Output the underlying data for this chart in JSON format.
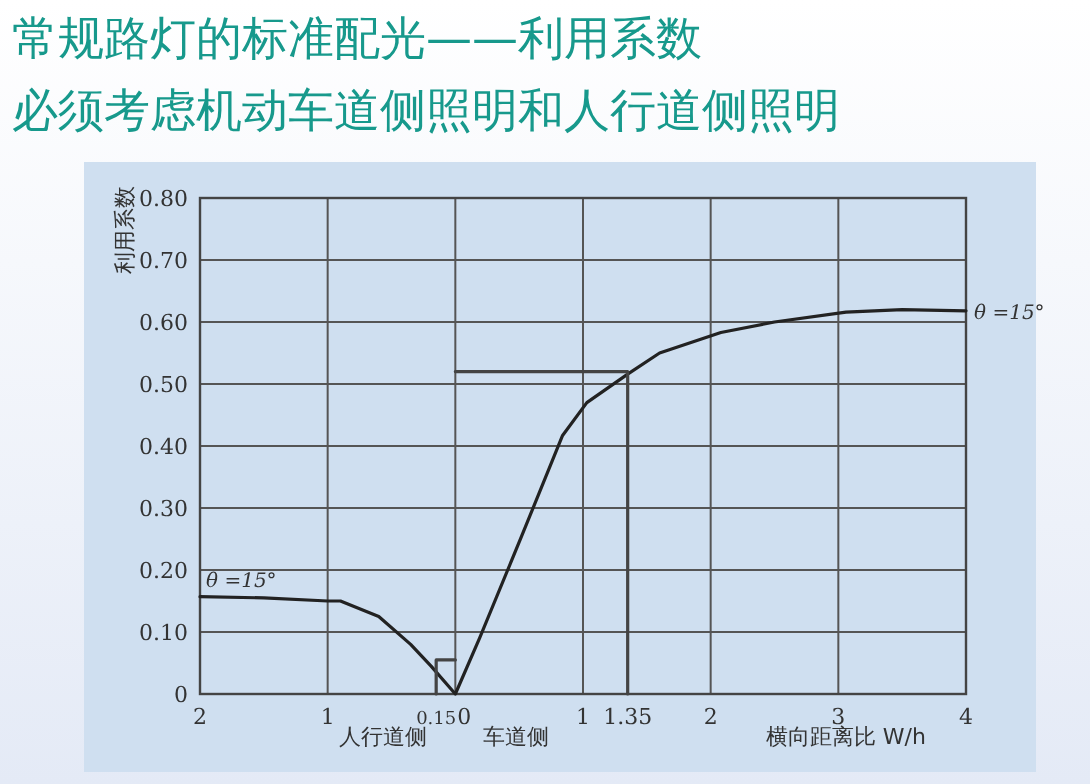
{
  "chart_data": {
    "type": "line",
    "title": "常规路灯的标准配光——利用系数",
    "subtitle": "必须考虑机动车道侧照明和人行道侧照明",
    "xlabel": "横向距离比 W/h",
    "ylabel": "利用系数",
    "annotations": [
      "人行道侧",
      "车道侧",
      {
        "text": "θ =15°",
        "x": -2,
        "y": 0.157
      },
      {
        "text": "θ =15°",
        "x": 4,
        "y": 0.617
      }
    ],
    "xlim": [
      -2,
      4
    ],
    "ylim": [
      0,
      0.8
    ],
    "xticks": [
      {
        "value": -2,
        "label": "2"
      },
      {
        "value": -1,
        "label": "1"
      },
      {
        "value": -0.15,
        "label": "0.15"
      },
      0,
      1,
      1.35,
      2,
      3,
      4
    ],
    "yticks": [
      0,
      {
        "value": 0.1,
        "label": "0.10"
      },
      {
        "value": 0.2,
        "label": "0.20"
      },
      {
        "value": 0.3,
        "label": "0.30"
      },
      {
        "value": 0.4,
        "label": "0.40"
      },
      {
        "value": 0.5,
        "label": "0.50"
      },
      {
        "value": 0.6,
        "label": "0.60"
      },
      {
        "value": 0.7,
        "label": "0.70"
      },
      {
        "value": 0.8,
        "label": "0.80"
      }
    ],
    "grid": true,
    "marker": "none",
    "line_style": "solid",
    "series": [
      {
        "color": "#222222",
        "x": [
          -2,
          -1.5,
          -1,
          -0.9,
          -0.6,
          -0.35,
          -0.19,
          0,
          0.19,
          0.52,
          0.84,
          1.03,
          1.35,
          1.6,
          2.08,
          2.5,
          3.06,
          3.5,
          4
        ],
        "values": [
          0.157,
          0.155,
          0.15,
          0.15,
          0.125,
          0.08,
          0.045,
          0,
          0.09,
          0.255,
          0.417,
          0.47,
          0.516,
          0.55,
          0.583,
          0.6,
          0.616,
          0.62,
          0.618
        ]
      },
      {
        "color": "#444444",
        "x": [
          0,
          1.35,
          1.35
        ],
        "values": [
          0.52,
          0.52,
          0
        ]
      },
      {
        "color": "#444444",
        "x": [
          -0.15,
          -0.15,
          0
        ],
        "values": [
          0,
          0.055,
          0.055
        ]
      }
    ]
  }
}
